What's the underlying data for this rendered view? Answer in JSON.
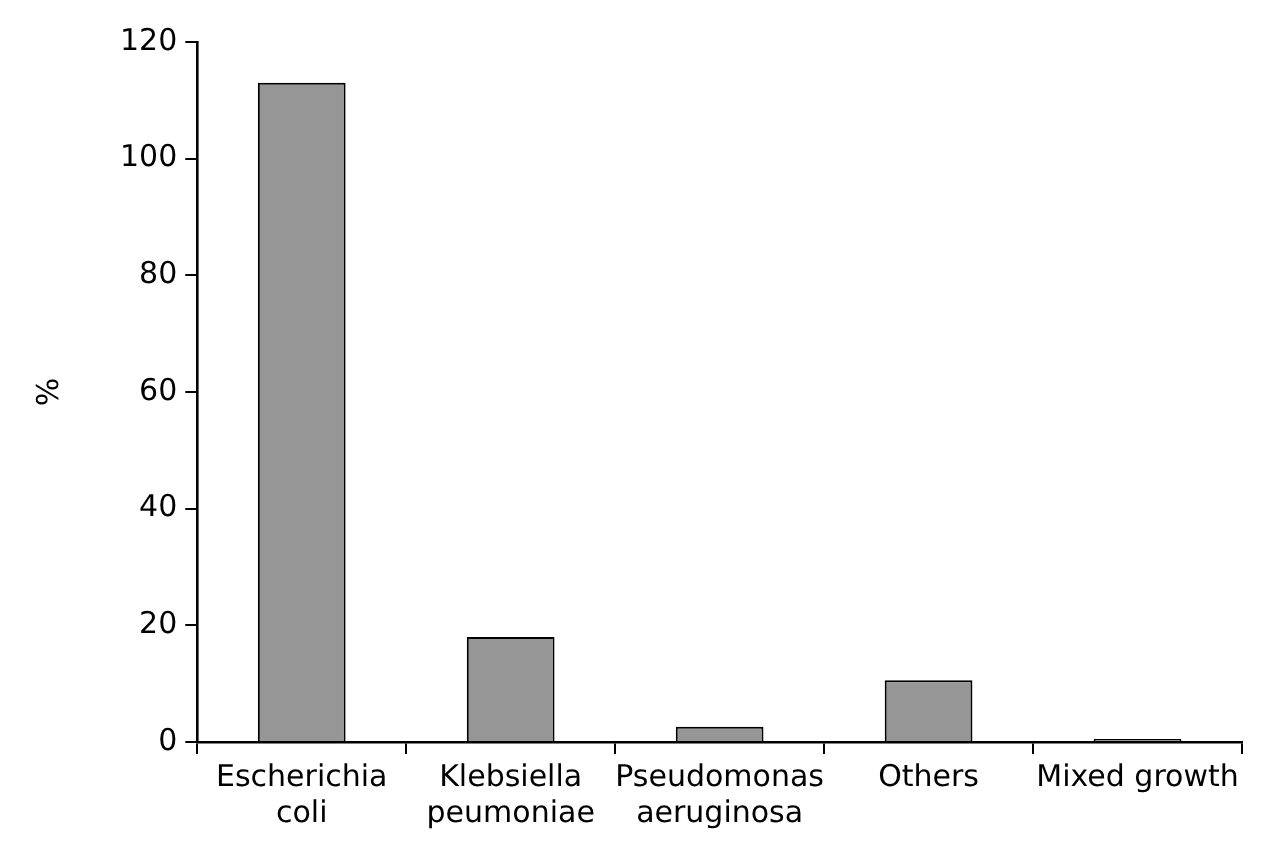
{
  "chart_data": {
    "type": "bar",
    "ylabel": "%",
    "categories": [
      "Escherichia coli",
      "Klebsiella peumoniae",
      "Pseudomonas aeruginosa",
      "Others",
      "Mixed growth"
    ],
    "values": [
      113,
      18,
      2.6,
      10.6,
      0.5
    ],
    "color": "#969696",
    "ylim": [
      0,
      120
    ],
    "yticks": [
      0,
      20,
      40,
      60,
      80,
      100,
      120
    ],
    "grid": false,
    "legend": false
  }
}
